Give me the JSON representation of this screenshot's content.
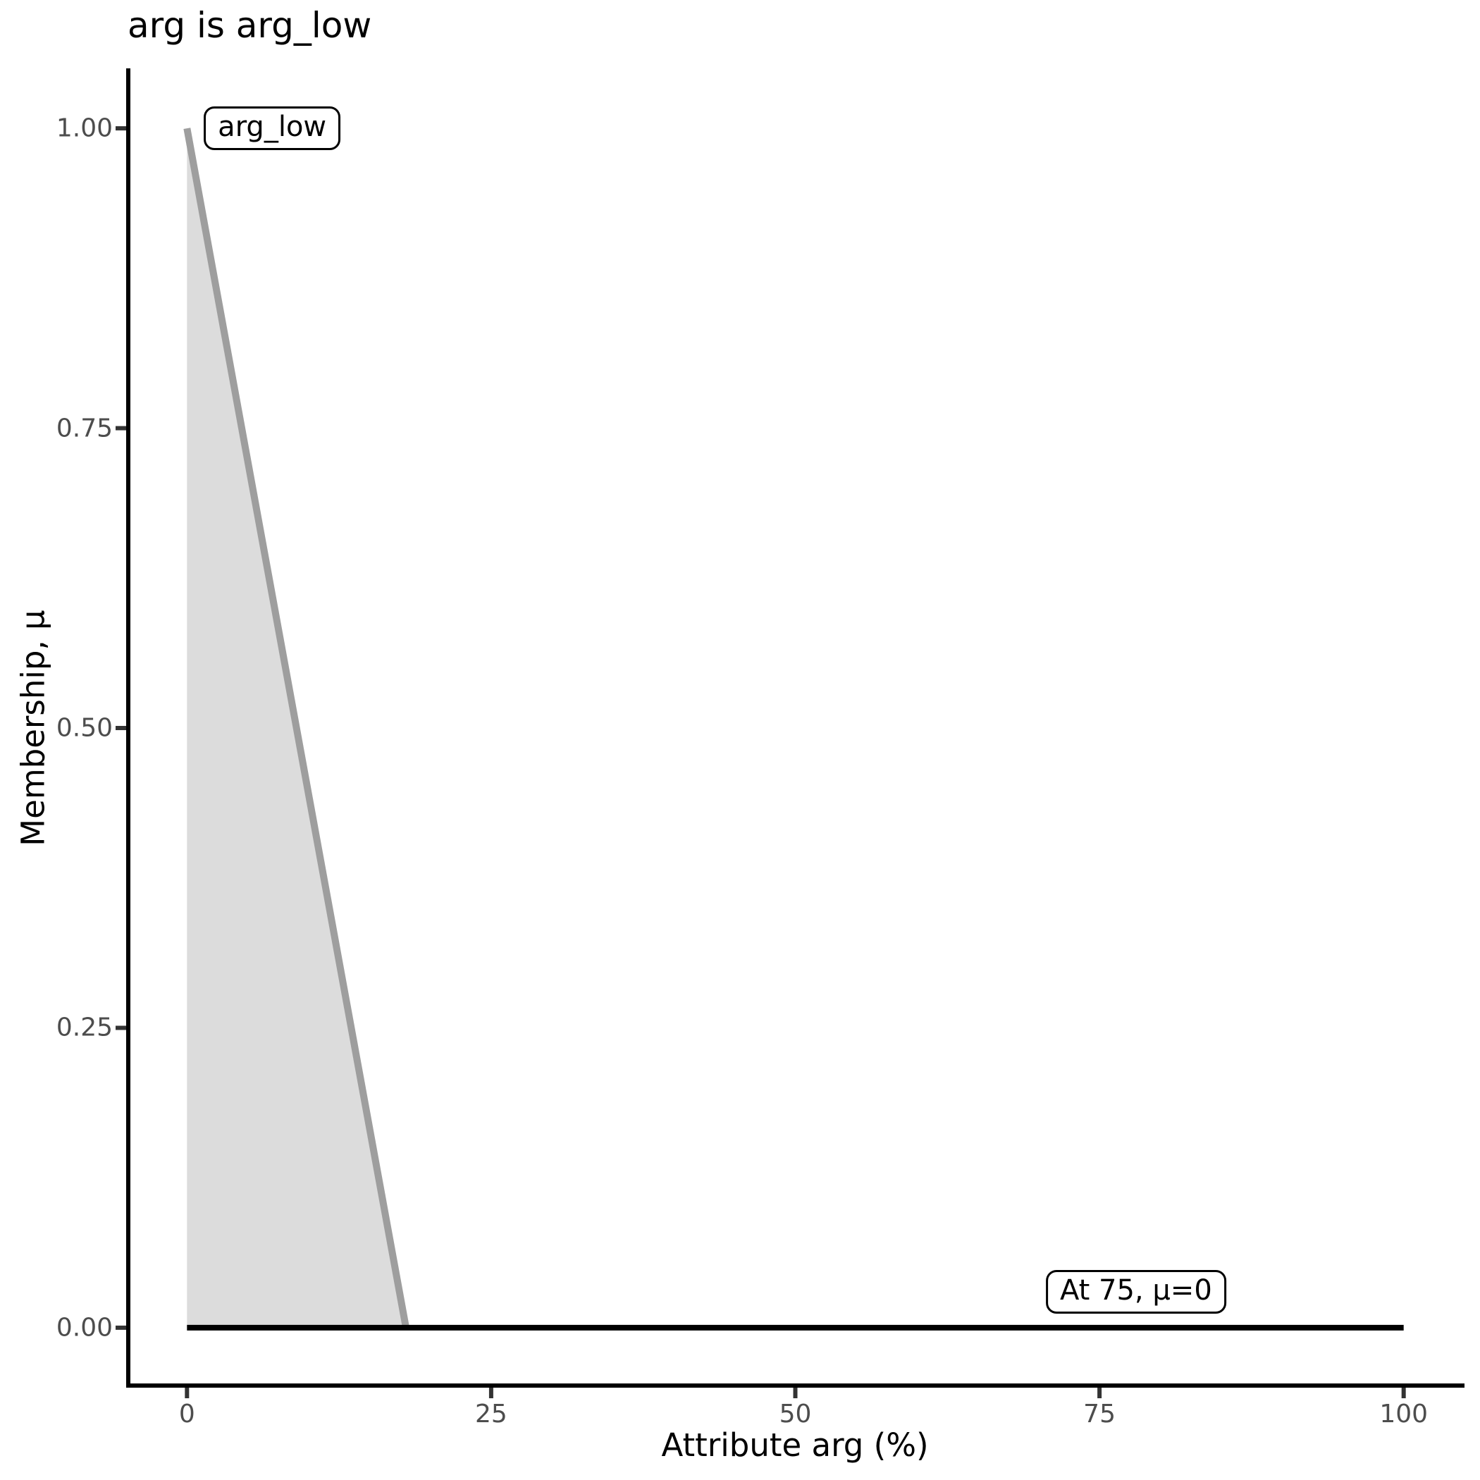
{
  "chart_data": {
    "type": "area",
    "title": "arg is arg_low",
    "xlabel": "Attribute arg (%)",
    "ylabel": "Membership, μ",
    "xlim": [
      -5,
      105
    ],
    "ylim": [
      -0.05,
      1.05
    ],
    "grid": false,
    "legend": "none",
    "x_ticks": [
      {
        "value": 0,
        "label": "0"
      },
      {
        "value": 25,
        "label": "25"
      },
      {
        "value": 50,
        "label": "50"
      },
      {
        "value": 75,
        "label": "75"
      },
      {
        "value": 100,
        "label": "100"
      }
    ],
    "y_ticks": [
      {
        "value": 0,
        "label": "0.00"
      },
      {
        "value": 0.25,
        "label": "0.25"
      },
      {
        "value": 0.5,
        "label": "0.50"
      },
      {
        "value": 0.75,
        "label": "0.75"
      },
      {
        "value": 1,
        "label": "1.00"
      }
    ],
    "series": [
      {
        "name": "arg_low-membership-curve",
        "kind": "area",
        "points": [
          [
            0,
            1
          ],
          [
            18,
            0
          ]
        ],
        "line_color": "#9e9e9e",
        "line_width": 10,
        "fill_color": "#dcdcdc"
      },
      {
        "name": "zero-membership-baseline",
        "kind": "line",
        "points": [
          [
            0,
            0
          ],
          [
            100,
            0
          ]
        ],
        "line_color": "#000000",
        "line_width": 8
      }
    ],
    "annotations": [
      {
        "text": "arg_low",
        "x": 7,
        "y": 1.0
      },
      {
        "text": "At 75, μ=0",
        "x": 78,
        "y": 0.03
      }
    ],
    "axis": {
      "line_color": "#000000",
      "line_width": 6,
      "tick_color": "#333333",
      "tick_length": 15,
      "label_color": "#4d4d4d"
    }
  }
}
